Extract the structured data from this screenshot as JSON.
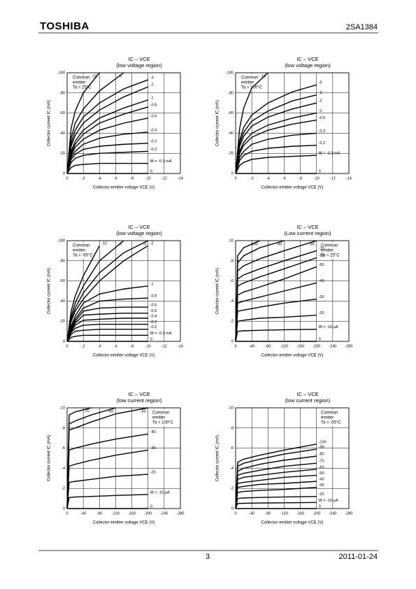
{
  "header": {
    "brand": "TOSHIBA",
    "part": "2SA1384"
  },
  "footer": {
    "page": "3",
    "date": "2011-01-24"
  },
  "chart_data": [
    {
      "type": "line",
      "title": "IC – VCE",
      "subtitle": "(low voltage region)",
      "annotation": [
        "Common",
        "emitter",
        "Ta = 25°C"
      ],
      "x_label": "Collector-emitter voltage   VCE   (V)",
      "y_label": "Collector current   IC   (mA)",
      "xlim": [
        0,
        -14
      ],
      "xticks": [
        0,
        -2,
        -4,
        -6,
        -8,
        -10,
        -12,
        -14
      ],
      "ylim": [
        0,
        -100
      ],
      "yticks": [
        0,
        -20,
        -40,
        -60,
        -80,
        -100
      ],
      "grid": true,
      "color": "#000000",
      "x": [
        0,
        -0.5,
        -1,
        -2,
        -4,
        -7,
        -10
      ],
      "series": [
        {
          "name": "-10",
          "values": [
            0,
            -45,
            -62,
            -80,
            -100,
            null,
            null
          ]
        },
        {
          "name": "-5",
          "values": [
            0,
            -35,
            -50,
            -64,
            -82,
            -100,
            null
          ]
        },
        {
          "name": "-3",
          "values": [
            0,
            -30,
            -43,
            -56,
            -70,
            -84,
            -93
          ]
        },
        {
          "name": "-2",
          "values": [
            0,
            -27,
            -38,
            -50,
            -63,
            -76,
            -86
          ]
        },
        {
          "name": "-1",
          "values": [
            0,
            -22,
            -32,
            -43,
            -55,
            -65,
            -73
          ]
        },
        {
          "name": "-0.8",
          "values": [
            0,
            -20,
            -29,
            -39,
            -50,
            -59,
            -66
          ]
        },
        {
          "name": "-0.6",
          "values": [
            0,
            -18,
            -26,
            -34,
            -43,
            -50,
            -55
          ]
        },
        {
          "name": "-0.4",
          "values": [
            0,
            -16,
            -22,
            -29,
            -35,
            -39,
            -41
          ]
        },
        {
          "name": "-0.3",
          "values": [
            0,
            -14,
            -19,
            -24,
            -27,
            -29,
            -30
          ]
        },
        {
          "name": "-0.2",
          "values": [
            0,
            -11,
            -15,
            -18,
            -20,
            -21,
            -22
          ]
        },
        {
          "name": "IB = -0.1 mA",
          "values": [
            0,
            -6,
            -8,
            -9,
            -10,
            -10,
            -10
          ]
        },
        {
          "name": "0",
          "values": [
            0,
            0,
            0,
            0,
            0,
            0,
            0
          ]
        }
      ]
    },
    {
      "type": "line",
      "title": "IC – VCE",
      "subtitle": "(low voltage region)",
      "annotation": [
        "Common",
        "emitter",
        "Ta = 100°C"
      ],
      "x_label": "Collector-emitter voltage   VCE   (V)",
      "y_label": "Collector current   IC   (mA)",
      "xlim": [
        0,
        -14
      ],
      "xticks": [
        0,
        -2,
        -4,
        -6,
        -8,
        -10,
        -12,
        -14
      ],
      "ylim": [
        0,
        -100
      ],
      "yticks": [
        0,
        -20,
        -40,
        -60,
        -80,
        -100
      ],
      "grid": true,
      "color": "#000000",
      "x": [
        0,
        -0.5,
        -1,
        -2,
        -4,
        -7,
        -10
      ],
      "series": [
        {
          "name": "-10",
          "values": [
            0,
            -45,
            -65,
            -85,
            -100,
            null,
            null
          ]
        },
        {
          "name": "-5",
          "values": [
            0,
            -33,
            -46,
            -58,
            -70,
            -81,
            -88
          ]
        },
        {
          "name": "-3",
          "values": [
            0,
            -30,
            -41,
            -52,
            -62,
            -72,
            -78
          ]
        },
        {
          "name": "-2",
          "values": [
            0,
            -27,
            -37,
            -47,
            -56,
            -64,
            -70
          ]
        },
        {
          "name": "-1",
          "values": [
            0,
            -22,
            -31,
            -40,
            -48,
            -55,
            -60
          ]
        },
        {
          "name": "-0.5",
          "values": [
            0,
            -20,
            -28,
            -36,
            -43,
            -49,
            -53
          ]
        },
        {
          "name": "-0.3",
          "values": [
            0,
            -16,
            -22,
            -29,
            -34,
            -38,
            -40
          ]
        },
        {
          "name": "-0.2",
          "values": [
            0,
            -13,
            -18,
            -22,
            -25,
            -27,
            -28
          ]
        },
        {
          "name": "IB = -0.1 mA",
          "values": [
            0,
            -8,
            -11,
            -14,
            -16,
            -17,
            -18
          ]
        },
        {
          "name": "0",
          "values": [
            0,
            0,
            0,
            0,
            0,
            0,
            0
          ]
        }
      ]
    },
    {
      "type": "line",
      "title": "IC – VCE",
      "subtitle": "(low voltage region)",
      "annotation": [
        "Common",
        "emitter",
        "Ta = -55°C"
      ],
      "x_label": "Collector-emitter voltage   VCE   (V)",
      "y_label": "Collector current   IC   (mA)",
      "xlim": [
        0,
        -14
      ],
      "xticks": [
        0,
        -2,
        -4,
        -6,
        -8,
        -10,
        -12,
        -14
      ],
      "ylim": [
        0,
        -100
      ],
      "yticks": [
        0,
        -20,
        -40,
        -60,
        -80,
        -100
      ],
      "grid": true,
      "color": "#000000",
      "x": [
        0,
        -0.5,
        -1,
        -2,
        -4,
        -7,
        -10
      ],
      "series": [
        {
          "name": "-10",
          "values": [
            0,
            -30,
            -45,
            -65,
            -95,
            null,
            null
          ]
        },
        {
          "name": "-5",
          "values": [
            0,
            -25,
            -38,
            -55,
            -80,
            -100,
            null
          ]
        },
        {
          "name": "-3",
          "values": [
            0,
            -22,
            -33,
            -48,
            -68,
            -88,
            -100
          ]
        },
        {
          "name": "-2",
          "values": [
            0,
            -20,
            -30,
            -42,
            -60,
            -80,
            -95
          ]
        },
        {
          "name": "-1",
          "values": [
            0,
            -15,
            -25,
            -38,
            -47,
            -52,
            -55
          ]
        },
        {
          "name": "-0.8",
          "values": [
            0,
            -13,
            -22,
            -33,
            -40,
            -42,
            -43
          ]
        },
        {
          "name": "-0.6",
          "values": [
            0,
            -12,
            -20,
            -30,
            -33,
            -34,
            -34
          ]
        },
        {
          "name": "-0.5",
          "values": [
            0,
            -11,
            -18,
            -26,
            -27,
            -28,
            -28
          ]
        },
        {
          "name": "-0.4",
          "values": [
            0,
            -10,
            -16,
            -21,
            -22,
            -23,
            -23
          ]
        },
        {
          "name": "-0.3",
          "values": [
            0,
            -9,
            -13,
            -16,
            -17,
            -17,
            -17
          ]
        },
        {
          "name": "-0.2",
          "values": [
            0,
            -7,
            -10,
            -11,
            -12,
            -12,
            -12
          ]
        },
        {
          "name": "IB = -0.1 mA",
          "values": [
            0,
            -4,
            -5,
            -6,
            -6,
            -6,
            -6
          ]
        },
        {
          "name": "0",
          "values": [
            0,
            0,
            0,
            0,
            0,
            0,
            0
          ]
        }
      ]
    },
    {
      "type": "line",
      "title": "IC – VCE",
      "subtitle": "(Low current region)",
      "annotation": [
        "Common",
        "emitter",
        "Ta = 25°C"
      ],
      "x_label": "Collector-emitter voltage   VCE   (V)",
      "y_label": "Collector current   IC   (mA)",
      "xlim": [
        0,
        -280
      ],
      "xticks": [
        0,
        -40,
        -80,
        -120,
        -160,
        -200,
        -240,
        -280
      ],
      "ylim": [
        0,
        -10
      ],
      "yticks": [
        0,
        -2,
        -4,
        -6,
        -8,
        -10
      ],
      "grid": true,
      "color": "#000000",
      "x": [
        0,
        -5,
        -20,
        -60,
        -120,
        -200
      ],
      "series": [
        {
          "name": "-100",
          "values": [
            0,
            -8.5,
            -9.3,
            -10,
            null,
            null
          ]
        },
        {
          "name": "-90",
          "values": [
            0,
            -7.8,
            -8.5,
            -9.3,
            -10,
            null
          ]
        },
        {
          "name": "-80",
          "values": [
            0,
            -7,
            -7.5,
            -8.2,
            -9,
            -10
          ]
        },
        {
          "name": "-70",
          "values": [
            0,
            -6.2,
            -6.6,
            -7.2,
            -8,
            -9
          ]
        },
        {
          "name": "-60",
          "values": [
            0,
            -5.5,
            -5.8,
            -6.4,
            -7.2,
            -8.3
          ]
        },
        {
          "name": "-50",
          "values": [
            0,
            -4.6,
            -4.9,
            -5.4,
            -6.2,
            -7.4
          ]
        },
        {
          "name": "-40",
          "values": [
            0,
            -3.8,
            -4,
            -4.4,
            -5,
            -5.8
          ]
        },
        {
          "name": "-30",
          "values": [
            0,
            -3,
            -3.1,
            -3.4,
            -3.8,
            -4.2
          ]
        },
        {
          "name": "-20",
          "values": [
            0,
            -2,
            -2.1,
            -2.3,
            -2.4,
            -2.6
          ]
        },
        {
          "name": "IB = -10 μA",
          "values": [
            0,
            -1,
            -1.05,
            -1.1,
            -1.15,
            -1.2
          ]
        },
        {
          "name": "0",
          "values": [
            0,
            0,
            0,
            0,
            0,
            0
          ]
        }
      ]
    },
    {
      "type": "line",
      "title": "IC – VCE",
      "subtitle": "(low current region)",
      "annotation": [
        "Common",
        "emitter",
        "Ta = 100°C"
      ],
      "x_label": "Collector-emitter voltage   VCE   (V)",
      "y_label": "Collector current   IC   (mA)",
      "xlim": [
        0,
        -280
      ],
      "xticks": [
        0,
        -40,
        -80,
        -120,
        -160,
        -200,
        -240,
        -280
      ],
      "ylim": [
        0,
        -10
      ],
      "yticks": [
        0,
        -2,
        -4,
        -6,
        -8,
        -10
      ],
      "grid": true,
      "color": "#000000",
      "x": [
        0,
        -5,
        -20,
        -60,
        -120,
        -200
      ],
      "series": [
        {
          "name": "-70",
          "values": [
            0,
            -9.3,
            -9.6,
            -10,
            null,
            null
          ]
        },
        {
          "name": "-60",
          "values": [
            0,
            -8.4,
            -8.7,
            -9.3,
            -10,
            null
          ]
        },
        {
          "name": "-50",
          "values": [
            0,
            -7.8,
            -8,
            -8.6,
            -9.4,
            -10
          ]
        },
        {
          "name": "-40",
          "values": [
            0,
            -5.8,
            -6,
            -6.4,
            -6.9,
            -7.4
          ]
        },
        {
          "name": "-30",
          "values": [
            0,
            -4.2,
            -4.4,
            -4.8,
            -5.3,
            -5.8
          ]
        },
        {
          "name": "-20",
          "values": [
            0,
            -2.6,
            -2.7,
            -2.9,
            -3.2,
            -3.4
          ]
        },
        {
          "name": "IB = -10 μA",
          "values": [
            0,
            -1.1,
            -1.15,
            -1.2,
            -1.3,
            -1.4
          ]
        },
        {
          "name": "0",
          "values": [
            0,
            0,
            0,
            0,
            0,
            0
          ]
        }
      ]
    },
    {
      "type": "line",
      "title": "IC – VCE",
      "subtitle": "(low current region)",
      "annotation": [
        "Common",
        "emitter",
        "Ta = -55°C"
      ],
      "x_label": "Collector-emitter voltage   VCE   (V)",
      "y_label": "Collector current   IC   (mA)",
      "xlim": [
        0,
        -280
      ],
      "xticks": [
        0,
        -40,
        -80,
        -120,
        -160,
        -200,
        -240,
        -280
      ],
      "ylim": [
        0,
        -10
      ],
      "yticks": [
        0,
        -2,
        -4,
        -6,
        -8,
        -10
      ],
      "grid": true,
      "color": "#000000",
      "x": [
        0,
        -5,
        -20,
        -60,
        -120,
        -200
      ],
      "series": [
        {
          "name": "-100",
          "values": [
            0,
            -4.6,
            -4.9,
            -5.3,
            -5.8,
            -6.4
          ]
        },
        {
          "name": "-90",
          "values": [
            0,
            -4.2,
            -4.5,
            -4.9,
            -5.4,
            -5.9
          ]
        },
        {
          "name": "-80",
          "values": [
            0,
            -3.7,
            -4,
            -4.4,
            -4.8,
            -5.2
          ]
        },
        {
          "name": "-70",
          "values": [
            0,
            -3.3,
            -3.5,
            -3.8,
            -4.2,
            -4.5
          ]
        },
        {
          "name": "-60",
          "values": [
            0,
            -2.9,
            -3.1,
            -3.3,
            -3.6,
            -3.9
          ]
        },
        {
          "name": "-50",
          "values": [
            0,
            -2.5,
            -2.6,
            -2.8,
            -3.1,
            -3.3
          ]
        },
        {
          "name": "-40",
          "values": [
            0,
            -2.1,
            -2.2,
            -2.4,
            -2.5,
            -2.7
          ]
        },
        {
          "name": "-30",
          "values": [
            0,
            -1.6,
            -1.7,
            -1.8,
            -1.9,
            -2.1
          ]
        },
        {
          "name": "-20",
          "values": [
            0,
            -1,
            -1.05,
            -1.1,
            -1.15,
            -1.2
          ]
        },
        {
          "name": "IB = -10 μA",
          "values": [
            0,
            -0.5,
            -0.52,
            -0.55,
            -0.57,
            -0.6
          ]
        },
        {
          "name": "0",
          "values": [
            0,
            0,
            0,
            0,
            0,
            0
          ]
        }
      ]
    }
  ]
}
